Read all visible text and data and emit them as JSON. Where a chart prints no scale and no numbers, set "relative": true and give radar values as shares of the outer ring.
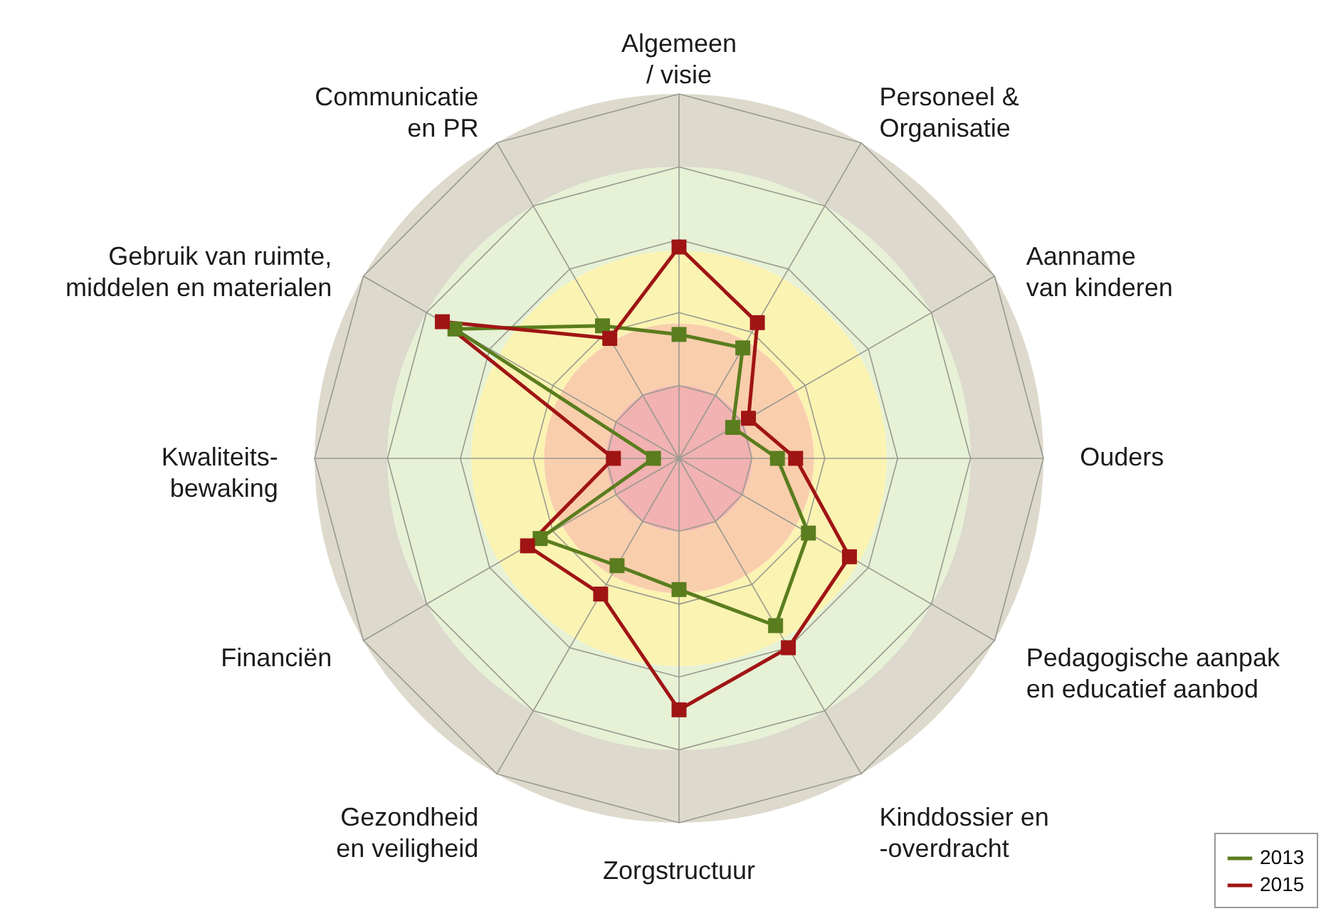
{
  "chart_data": {
    "type": "radar",
    "relative": true,
    "categories": [
      "Algemeen\n/ visie",
      "Personeel &\nOrganisatie",
      "Aanname\nvan kinderen",
      "Ouders",
      "Pedagogische aanpak\nen educatief aanbod",
      "Kinddossier en\n-overdracht",
      "Zorgstructuur",
      "Gezondheid\nen veiligheid",
      "Financiën",
      "Kwaliteits-\nbewaking",
      "Gebruik van ruimte,\nmiddelen en materialen",
      "Communicatie\nen PR"
    ],
    "series": [
      {
        "name": "2013",
        "color": "#5a7d1e",
        "values": [
          0.34,
          0.35,
          0.17,
          0.27,
          0.41,
          0.53,
          0.36,
          0.34,
          0.44,
          0.07,
          0.71,
          0.42
        ]
      },
      {
        "name": "2015",
        "color": "#a01414",
        "values": [
          0.58,
          0.43,
          0.22,
          0.32,
          0.54,
          0.6,
          0.69,
          0.43,
          0.48,
          0.18,
          0.75,
          0.38
        ]
      }
    ],
    "grid": true,
    "marker": "square",
    "line_style": "solid",
    "legend": "bottom right"
  }
}
